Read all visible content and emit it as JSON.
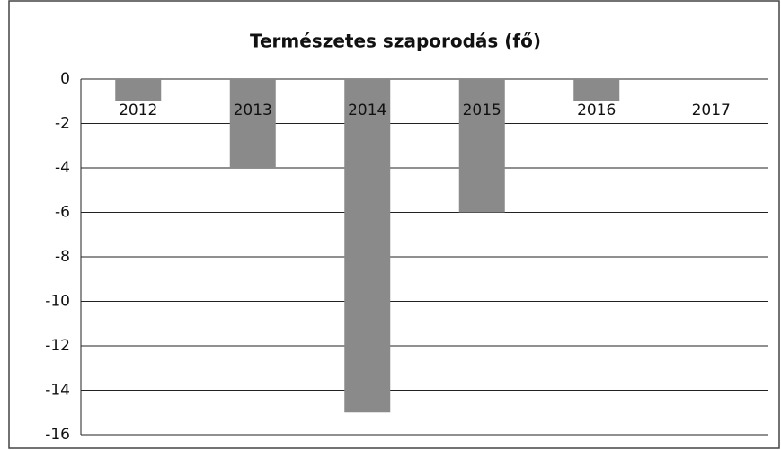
{
  "chart_data": {
    "type": "bar",
    "title": "Természetes szaporodás (fő)",
    "categories": [
      "2012",
      "2013",
      "2014",
      "2015",
      "2016",
      "2017"
    ],
    "values": [
      -1,
      -4,
      -15,
      -6,
      -1,
      0
    ],
    "color": "#8a8a8a",
    "ylim": [
      -16,
      0
    ],
    "yticks": [
      0,
      -2,
      -4,
      -6,
      -8,
      -10,
      -12,
      -14,
      -16
    ],
    "grid": true
  }
}
